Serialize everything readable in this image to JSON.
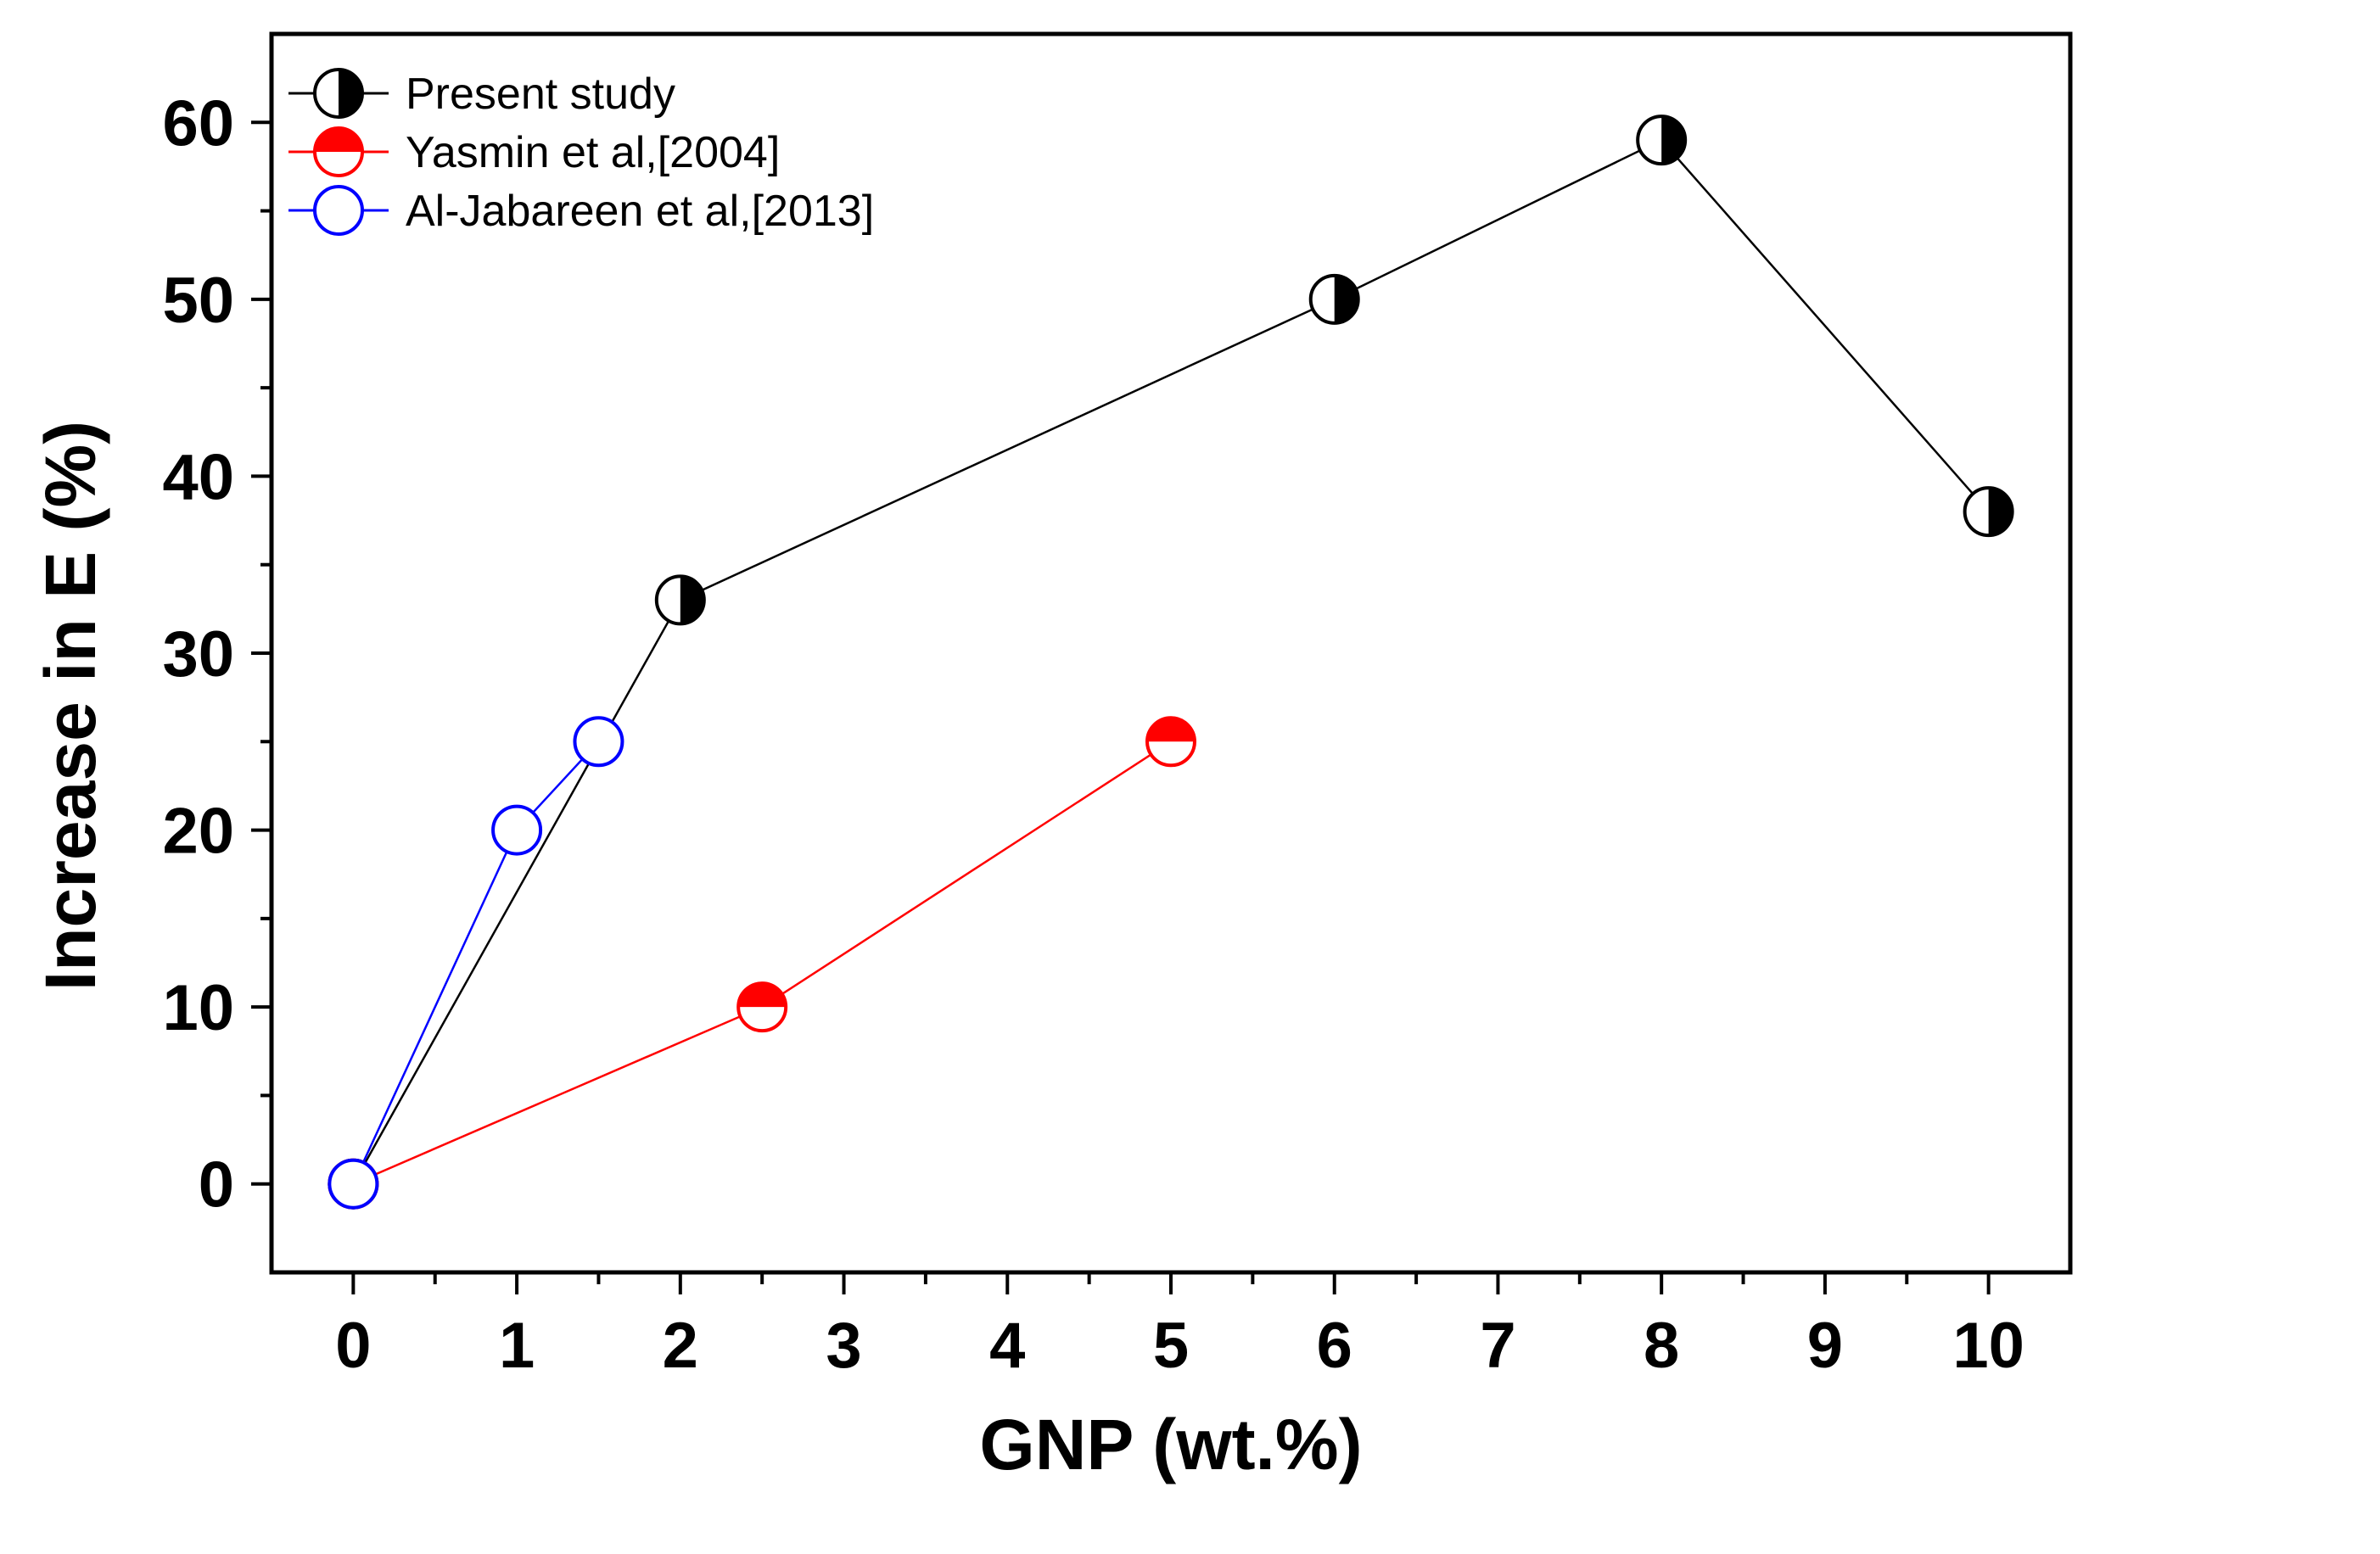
{
  "chart_data": {
    "type": "line",
    "title": "",
    "xlabel": "GNP (wt.%)",
    "ylabel": "Increase in E (%)",
    "xlim": [
      -0.5,
      10.5
    ],
    "ylim": [
      -5,
      65
    ],
    "x_ticks": [
      0,
      1,
      2,
      3,
      4,
      5,
      6,
      7,
      8,
      9,
      10
    ],
    "x_tick_labels": [
      "0",
      "1",
      "2",
      "3",
      "4",
      "5",
      "6",
      "7",
      "8",
      "9",
      "10"
    ],
    "y_ticks": [
      0,
      10,
      20,
      30,
      40,
      50,
      60
    ],
    "y_tick_labels": [
      "0",
      "10",
      "20",
      "30",
      "40",
      "50",
      "60"
    ],
    "grid": false,
    "legend_position": "top-left",
    "series": [
      {
        "name": "Present study",
        "color": "#000000",
        "marker": "circle-half-right",
        "x": [
          0,
          2,
          6,
          8,
          10
        ],
        "y": [
          0,
          33,
          50,
          59,
          38
        ]
      },
      {
        "name": "Yasmin et al,[2004]",
        "color": "#ff0000",
        "marker": "circle-half-top",
        "x": [
          0,
          2.5,
          5
        ],
        "y": [
          0,
          10,
          25
        ]
      },
      {
        "name": "Al-Jabareen et al,[2013]",
        "color": "#0000ff",
        "marker": "circle-open",
        "x": [
          0,
          1,
          1.5
        ],
        "y": [
          0,
          20,
          25
        ]
      }
    ]
  }
}
